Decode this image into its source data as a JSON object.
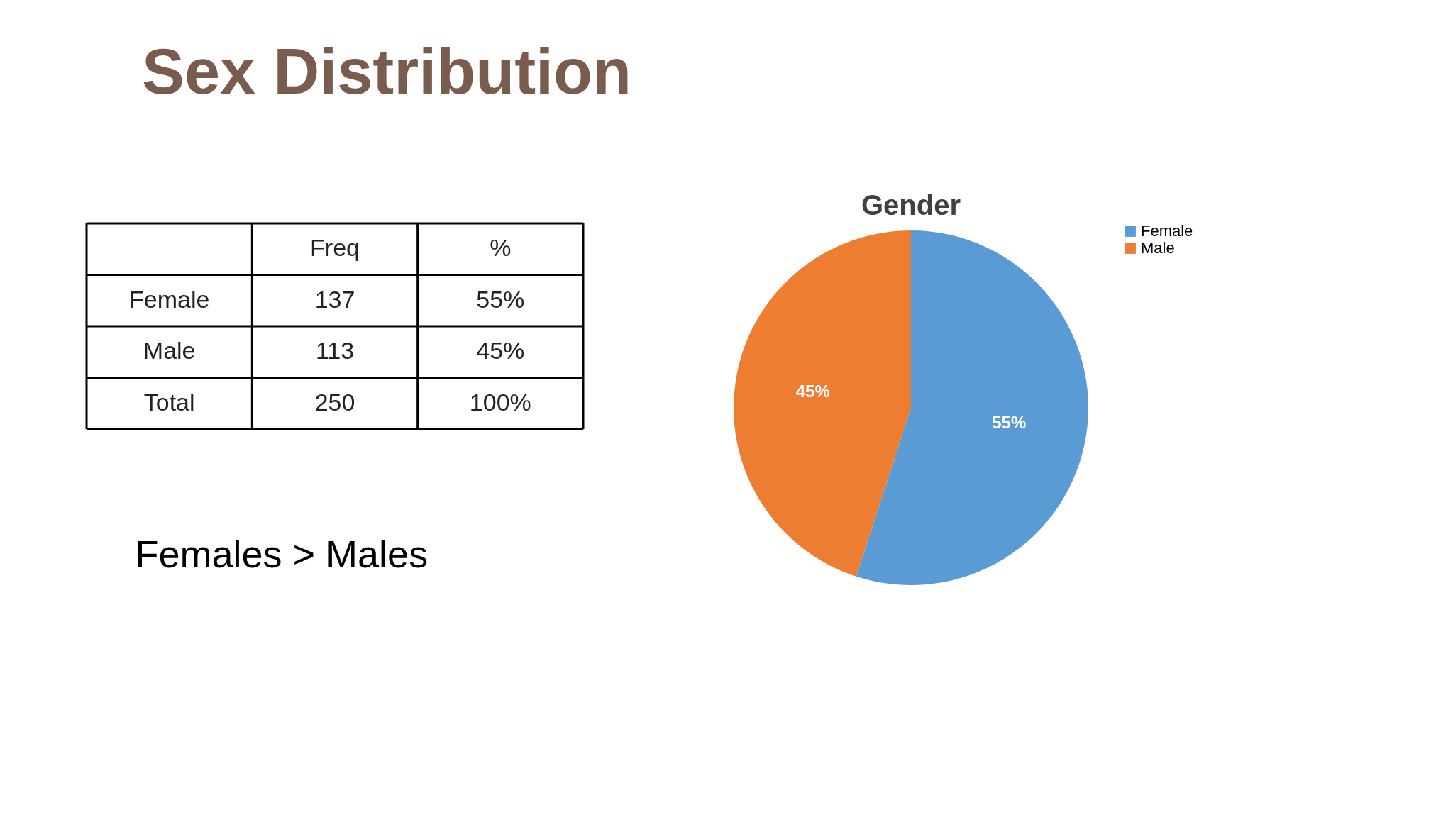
{
  "chart_data": [
    {
      "type": "other",
      "title": "Sex Distribution",
      "categories": [
        null,
        "Freq",
        "%"
      ],
      "y_categories": [
        "Female",
        "Male",
        "Total"
      ],
      "cell_labels": [
        [
          "137",
          "55%"
        ],
        [
          "113",
          "45%"
        ],
        [
          "250",
          "100%"
        ]
      ],
      "annotations": [
        "Females  > Males"
      ]
    },
    {
      "type": "pie",
      "title": "Gender",
      "categories": [
        "Female",
        "Male"
      ],
      "values": [
        55,
        45
      ],
      "colors": [
        "#5b9bd5",
        "#ed7d31"
      ],
      "value_labels": [
        "55%",
        "45%"
      ],
      "legend": "right"
    }
  ]
}
